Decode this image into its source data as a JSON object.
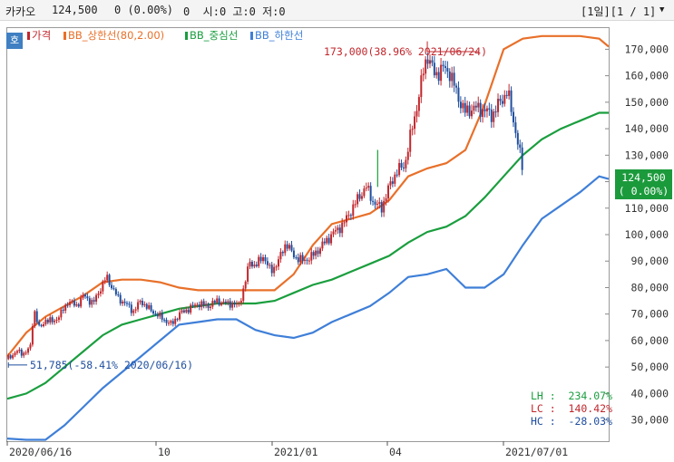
{
  "header": {
    "stock_name": "카카오",
    "price": "124,500",
    "change": "0 (0.00%)",
    "ohlc": "0  시:0 고:0 저:0",
    "pager": "[1일][1 / 1]",
    "scroll_arrow": "▼"
  },
  "zoom_button": "호",
  "legend": {
    "price": "가격",
    "upper": "BB_상한선(80,2.00)",
    "middle": "BB_중심선",
    "lower": "BB_하한선"
  },
  "price_box": {
    "line1": "124,500",
    "line2": "( 0.00%)"
  },
  "annotations": {
    "high": "173,000(38.96% 2021/06/24)",
    "low": "51,785(-58.41% 2020/06/16)"
  },
  "stats": {
    "lh": "LH :  234.07%",
    "lc": "LC :  140.42%",
    "hc": "HC :  -28.03%"
  },
  "colors": {
    "candle_up": "#c1272d",
    "candle_down": "#1f4e9e",
    "upper_band": "#e8702a",
    "middle_band": "#1a9e3e",
    "lower_band": "#3f7fd8",
    "price_box_bg": "#1b9a3c"
  },
  "chart_data": {
    "type": "line",
    "x_tick_labels": [
      "2020/06/16",
      "10",
      "2021/01",
      "04",
      "2021/07/01"
    ],
    "y_ticks": [
      30000,
      40000,
      50000,
      60000,
      70000,
      80000,
      90000,
      100000,
      110000,
      120000,
      130000,
      140000,
      150000,
      160000,
      170000
    ],
    "y_tick_labels": [
      "30,000",
      "40,000",
      "50,000",
      "60,000",
      "70,000",
      "80,000",
      "90,000",
      "100,000",
      "110,000",
      "120,000",
      "130,000",
      "140,000",
      "150,000",
      "160,000",
      "170,000"
    ],
    "ylim": [
      22000,
      178000
    ],
    "x_count": 270,
    "x_tick_index": [
      0,
      72,
      143,
      205,
      264
    ],
    "series": [
      {
        "name": "BB_상한선(80,2.00)",
        "key": "upper",
        "x": [
          0,
          10,
          20,
          30,
          40,
          50,
          60,
          70,
          80,
          90,
          100,
          110,
          120,
          130,
          140,
          150,
          160,
          170,
          180,
          190,
          200,
          210,
          220,
          230,
          240,
          250,
          260,
          270,
          280,
          290,
          300,
          310,
          315
        ],
        "values": [
          54000,
          63000,
          69000,
          73000,
          77000,
          82000,
          83000,
          83000,
          82000,
          80000,
          79000,
          79000,
          79000,
          79000,
          79000,
          85000,
          96000,
          104000,
          106000,
          108000,
          113000,
          122000,
          125000,
          127000,
          132000,
          149000,
          170000,
          174000,
          175000,
          175000,
          175000,
          174000,
          171000
        ]
      },
      {
        "name": "BB_중심선",
        "key": "middle",
        "x": [
          0,
          10,
          20,
          30,
          40,
          50,
          60,
          70,
          80,
          90,
          100,
          110,
          120,
          130,
          140,
          150,
          160,
          170,
          180,
          190,
          200,
          210,
          220,
          230,
          240,
          250,
          260,
          270,
          280,
          290,
          300,
          310,
          315
        ],
        "values": [
          38000,
          40000,
          44000,
          50000,
          56000,
          62000,
          66000,
          68000,
          70000,
          72000,
          73000,
          74000,
          74000,
          74000,
          75000,
          78000,
          81000,
          83000,
          86000,
          89000,
          92000,
          97000,
          101000,
          103000,
          107000,
          114000,
          122000,
          130000,
          136000,
          140000,
          143000,
          146000,
          146000
        ]
      },
      {
        "name": "BB_하한선",
        "key": "lower",
        "x": [
          0,
          10,
          20,
          30,
          40,
          50,
          60,
          70,
          80,
          90,
          100,
          110,
          120,
          130,
          140,
          150,
          160,
          170,
          180,
          190,
          200,
          210,
          220,
          230,
          240,
          250,
          260,
          270,
          280,
          290,
          300,
          310,
          315
        ],
        "values": [
          23000,
          22500,
          22500,
          28000,
          35000,
          42000,
          48000,
          54000,
          60000,
          66000,
          67000,
          68000,
          68000,
          64000,
          62000,
          61000,
          63000,
          67000,
          70000,
          73000,
          78000,
          84000,
          85000,
          87000,
          80000,
          80000,
          85000,
          96000,
          106000,
          111000,
          116000,
          122000,
          121000
        ]
      }
    ],
    "candles_close": [
      [
        0,
        53000
      ],
      [
        5,
        56000
      ],
      [
        8,
        55000
      ],
      [
        12,
        57000
      ],
      [
        14,
        72000
      ],
      [
        17,
        64000
      ],
      [
        20,
        68000
      ],
      [
        24,
        67000
      ],
      [
        28,
        70000
      ],
      [
        32,
        75000
      ],
      [
        36,
        73000
      ],
      [
        40,
        77000
      ],
      [
        45,
        74000
      ],
      [
        49,
        80000
      ],
      [
        52,
        84000
      ],
      [
        55,
        80000
      ],
      [
        58,
        76000
      ],
      [
        62,
        74000
      ],
      [
        66,
        71000
      ],
      [
        70,
        75000
      ],
      [
        74,
        72000
      ],
      [
        78,
        70000
      ],
      [
        82,
        68000
      ],
      [
        86,
        66000
      ],
      [
        90,
        70000
      ],
      [
        95,
        72000
      ],
      [
        100,
        74000
      ],
      [
        105,
        73000
      ],
      [
        110,
        75000
      ],
      [
        114,
        74000
      ],
      [
        118,
        74000
      ],
      [
        121,
        73000
      ],
      [
        124,
        80000
      ],
      [
        127,
        90000
      ],
      [
        130,
        88000
      ],
      [
        134,
        92000
      ],
      [
        138,
        86000
      ],
      [
        142,
        90000
      ],
      [
        146,
        97000
      ],
      [
        150,
        92000
      ],
      [
        155,
        90000
      ],
      [
        160,
        92000
      ],
      [
        165,
        96000
      ],
      [
        170,
        100000
      ],
      [
        176,
        104000
      ],
      [
        180,
        109000
      ],
      [
        184,
        114000
      ],
      [
        188,
        118000
      ],
      [
        192,
        112000
      ],
      [
        196,
        110000
      ],
      [
        200,
        118000
      ],
      [
        204,
        124000
      ],
      [
        208,
        126000
      ],
      [
        212,
        140000
      ],
      [
        215,
        150000
      ],
      [
        218,
        162000
      ],
      [
        220,
        168000
      ],
      [
        224,
        160000
      ],
      [
        228,
        163000
      ],
      [
        232,
        161000
      ],
      [
        236,
        152000
      ],
      [
        240,
        146000
      ],
      [
        244,
        148000
      ],
      [
        250,
        147000
      ],
      [
        254,
        145000
      ],
      [
        258,
        150000
      ],
      [
        262,
        154000
      ],
      [
        266,
        140000
      ],
      [
        270,
        124500
      ]
    ]
  }
}
